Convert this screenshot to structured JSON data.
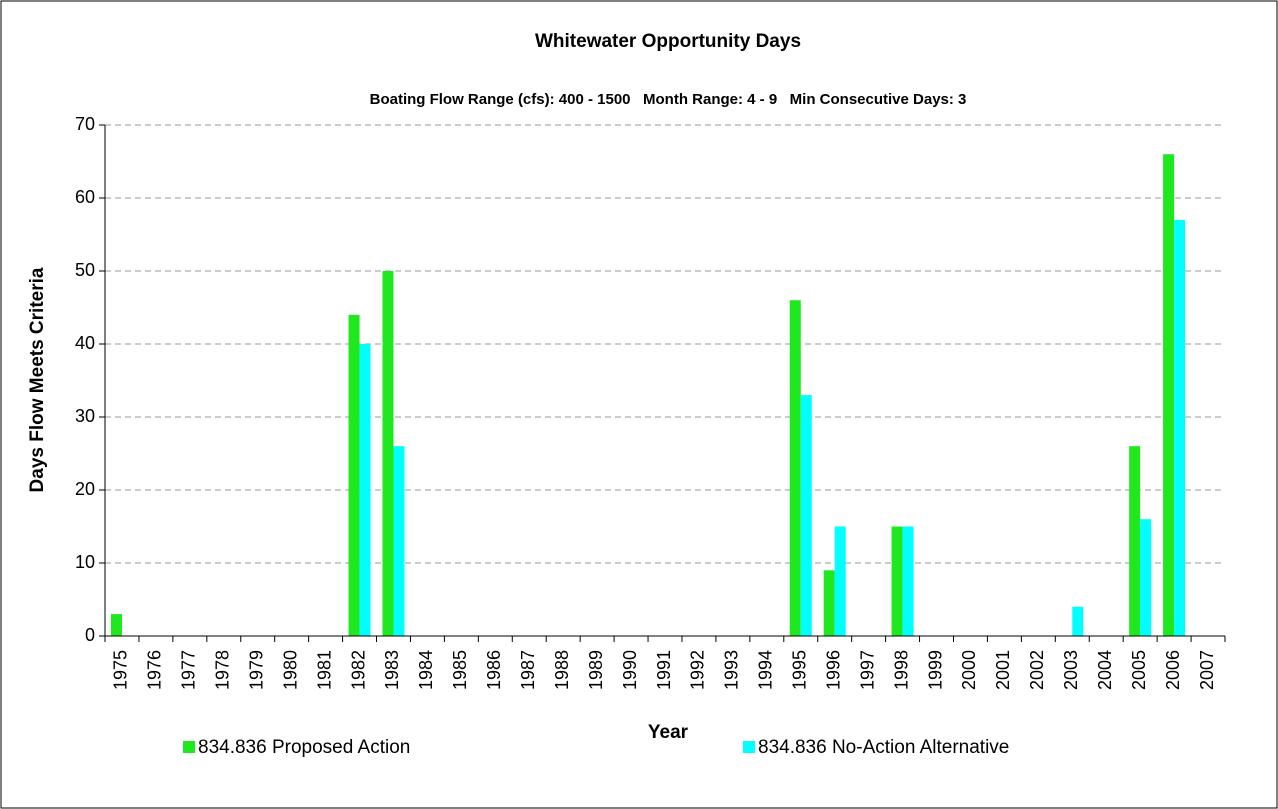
{
  "chart_data": {
    "type": "bar",
    "title": "Whitewater Opportunity Days",
    "subtitle": "Boating Flow Range (cfs): 400 - 1500   Month Range: 4 - 9   Min Consecutive Days: 3",
    "x_label": "Year",
    "y_label": "Days Flow Meets Criteria",
    "categories": [
      "1975",
      "1976",
      "1977",
      "1978",
      "1979",
      "1980",
      "1981",
      "1982",
      "1983",
      "1984",
      "1985",
      "1986",
      "1987",
      "1988",
      "1989",
      "1990",
      "1991",
      "1992",
      "1993",
      "1994",
      "1995",
      "1996",
      "1997",
      "1998",
      "1999",
      "2000",
      "2001",
      "2002",
      "2003",
      "2004",
      "2005",
      "2006",
      "2007"
    ],
    "series": [
      {
        "name": "834.836 Proposed Action",
        "color": "#1fe81f",
        "values": [
          3,
          0,
          0,
          0,
          0,
          0,
          0,
          44,
          50,
          0,
          0,
          0,
          0,
          0,
          0,
          0,
          0,
          0,
          0,
          0,
          46,
          9,
          0,
          15,
          0,
          0,
          0,
          0,
          0,
          0,
          26,
          66,
          0
        ]
      },
      {
        "name": "834.836 No-Action Alternative",
        "color": "#00ffff",
        "values": [
          0,
          0,
          0,
          0,
          0,
          0,
          0,
          40,
          26,
          0,
          0,
          0,
          0,
          0,
          0,
          0,
          0,
          0,
          0,
          0,
          33,
          15,
          0,
          15,
          0,
          0,
          0,
          0,
          4,
          0,
          16,
          57,
          0
        ]
      }
    ],
    "ylim": [
      0,
      70
    ],
    "yticks": [
      0,
      10,
      20,
      30,
      40,
      50,
      60,
      70
    ],
    "grid": true,
    "legend": "bottom"
  }
}
